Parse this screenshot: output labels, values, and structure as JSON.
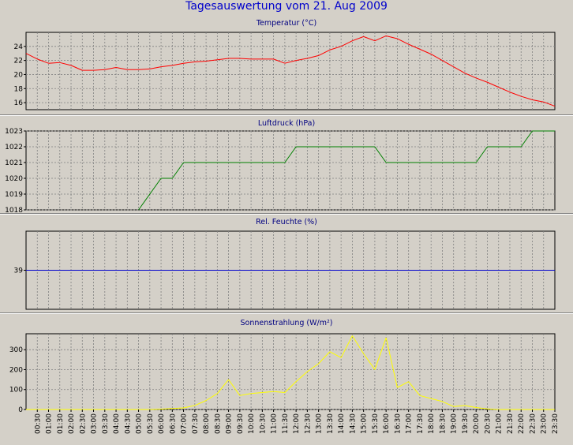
{
  "title": "Tagesauswertung vom 21. Aug 2009",
  "colors": {
    "background": "#d4d0c8",
    "title": "#0000cc",
    "panel_title": "#000080",
    "grid": "#808080"
  },
  "chart_data": [
    {
      "type": "line",
      "title": "Temperatur (°C)",
      "color": "#ff0000",
      "ylim": [
        15,
        26
      ],
      "yticks": [
        16,
        18,
        20,
        22,
        24
      ],
      "grid": true,
      "x": [
        0,
        0.5,
        1,
        1.5,
        2,
        2.5,
        3,
        3.5,
        4,
        4.5,
        5,
        5.5,
        6,
        6.5,
        7,
        7.5,
        8,
        8.5,
        9,
        9.5,
        10,
        10.5,
        11,
        11.5,
        12,
        12.5,
        13,
        13.5,
        14,
        14.5,
        15,
        15.5,
        16,
        16.5,
        17,
        17.5,
        18,
        18.5,
        19,
        19.5,
        20,
        20.5,
        21,
        21.5,
        22,
        22.5,
        23,
        23.5
      ],
      "values": [
        23,
        22.2,
        21.6,
        21.7,
        21.3,
        20.6,
        20.6,
        20.7,
        21,
        20.7,
        20.7,
        20.8,
        21.1,
        21.3,
        21.6,
        21.8,
        21.9,
        22.1,
        22.3,
        22.3,
        22.2,
        22.2,
        22.2,
        21.6,
        22,
        22.3,
        22.7,
        23.5,
        24,
        24.8,
        25.4,
        24.8,
        25.5,
        25.1,
        24.3,
        23.6,
        22.9,
        22,
        21.1,
        20.2,
        19.5,
        18.9,
        18.2,
        17.5,
        16.9,
        16.4,
        16.1,
        15.5
      ]
    },
    {
      "type": "line",
      "title": "Luftdruck (hPa)",
      "color": "#008000",
      "ylim": [
        1018,
        1023
      ],
      "yticks": [
        1018,
        1019,
        1020,
        1021,
        1022,
        1023
      ],
      "grid": true,
      "x": [
        5,
        6,
        6.5,
        7,
        11.5,
        12,
        15.5,
        16,
        20,
        20.5,
        22,
        22.5,
        23.5
      ],
      "values": [
        1018,
        1020,
        1020,
        1021,
        1021,
        1022,
        1022,
        1021,
        1021,
        1022,
        1022,
        1023,
        1023
      ]
    },
    {
      "type": "line",
      "title": "Rel. Feuchte (%)",
      "color": "#0000cc",
      "ylim": [
        34,
        44
      ],
      "yticks": [
        39
      ],
      "grid": true,
      "x": [
        0,
        23.5
      ],
      "values": [
        39,
        39
      ]
    },
    {
      "type": "line",
      "title": "Sonnenstrahlung (W/m²)",
      "color": "#ffff00",
      "ylim": [
        0,
        380
      ],
      "yticks": [
        0,
        100,
        200,
        300
      ],
      "grid": true,
      "x": [
        0,
        0.5,
        1,
        1.5,
        2,
        2.5,
        3,
        3.5,
        4,
        4.5,
        5,
        5.5,
        6,
        6.5,
        7,
        7.5,
        8,
        8.5,
        9,
        9.5,
        10,
        10.5,
        11,
        11.5,
        12,
        12.5,
        13,
        13.5,
        14,
        14.5,
        15,
        15.5,
        16,
        16.5,
        17,
        17.5,
        18,
        18.5,
        19,
        19.5,
        20,
        20.5,
        21,
        21.5,
        22,
        22.5,
        23,
        23.5
      ],
      "values": [
        0,
        0,
        0,
        0,
        0,
        0,
        0,
        0,
        0,
        0,
        0,
        0,
        2,
        5,
        8,
        20,
        45,
        80,
        150,
        70,
        80,
        85,
        90,
        85,
        140,
        190,
        230,
        290,
        260,
        370,
        280,
        200,
        360,
        110,
        140,
        70,
        55,
        40,
        15,
        20,
        10,
        3,
        0,
        0,
        0,
        0,
        0,
        0
      ]
    }
  ],
  "x_axis": {
    "labels": [
      "00:30",
      "01:00",
      "01:30",
      "02:00",
      "02:30",
      "03:00",
      "03:30",
      "04:00",
      "04:30",
      "05:00",
      "05:30",
      "06:00",
      "06:30",
      "07:00",
      "07:30",
      "08:00",
      "08:30",
      "09:00",
      "09:30",
      "10:00",
      "10:30",
      "11:00",
      "11:30",
      "12:00",
      "12:30",
      "13:00",
      "13:30",
      "14:00",
      "14:30",
      "15:00",
      "15:30",
      "16:00",
      "16:30",
      "17:00",
      "17:30",
      "18:00",
      "18:30",
      "19:00",
      "19:30",
      "20:00",
      "20:30",
      "21:00",
      "21:30",
      "22:00",
      "22:30",
      "23:00",
      "23:30"
    ]
  }
}
